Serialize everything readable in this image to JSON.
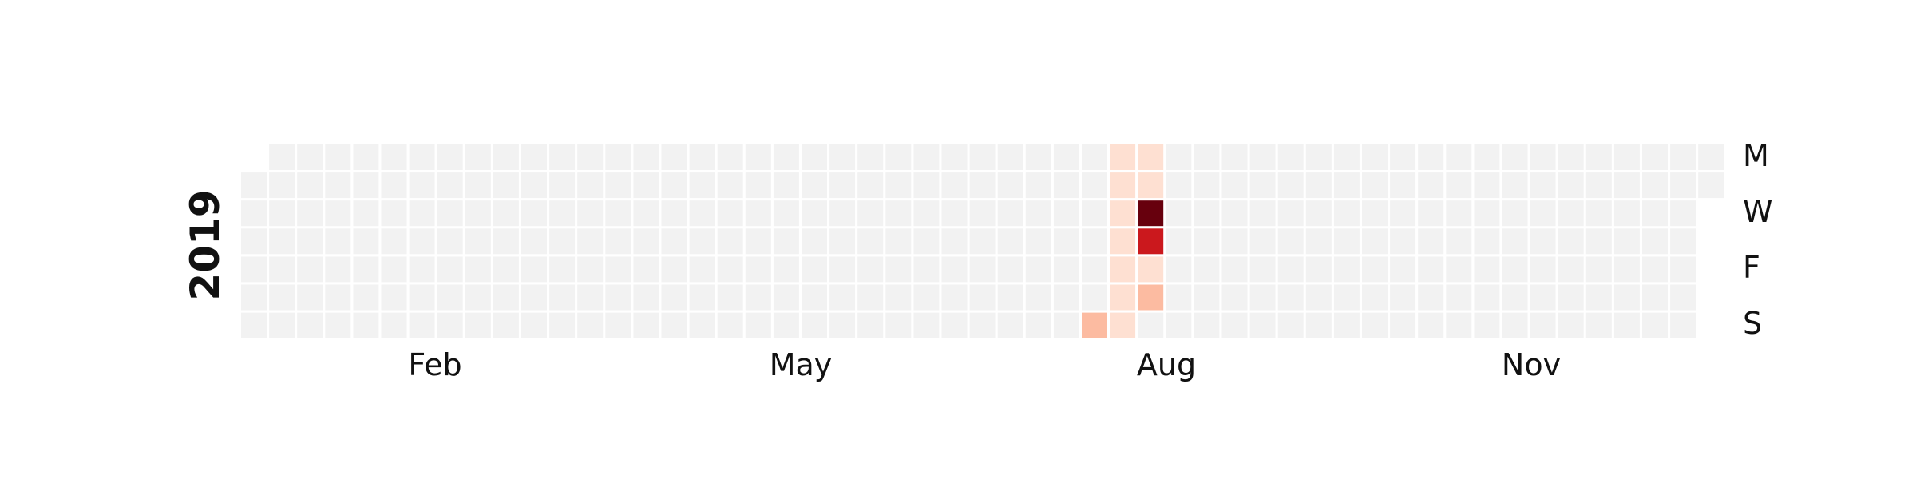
{
  "chart_data": {
    "type": "heatmap",
    "title": "",
    "year": "2019",
    "month_labels": [
      "Feb",
      "May",
      "Aug",
      "Nov"
    ],
    "weekday_labels": [
      "M",
      "W",
      "F",
      "S"
    ],
    "grid": false,
    "legend": "none",
    "colors": {
      "empty": "#f2f2f2",
      "scale": [
        "#fff5f0",
        "#fee0d2",
        "#fcbba1",
        "#fc9272",
        "#fb6a4a",
        "#ef3b2c",
        "#cb181d",
        "#a50f15",
        "#67000d"
      ]
    },
    "points": [
      {
        "date": "2019-08-04",
        "value": 2
      },
      {
        "date": "2019-08-05",
        "value": 1
      },
      {
        "date": "2019-08-06",
        "value": 1
      },
      {
        "date": "2019-08-07",
        "value": 1
      },
      {
        "date": "2019-08-08",
        "value": 1
      },
      {
        "date": "2019-08-09",
        "value": 1
      },
      {
        "date": "2019-08-10",
        "value": 1
      },
      {
        "date": "2019-08-11",
        "value": 1
      },
      {
        "date": "2019-08-12",
        "value": 1
      },
      {
        "date": "2019-08-13",
        "value": 1
      },
      {
        "date": "2019-08-14",
        "value": 10
      },
      {
        "date": "2019-08-15",
        "value": 8
      },
      {
        "date": "2019-08-16",
        "value": 1
      },
      {
        "date": "2019-08-17",
        "value": 2
      }
    ],
    "value_range": [
      0,
      10
    ]
  }
}
